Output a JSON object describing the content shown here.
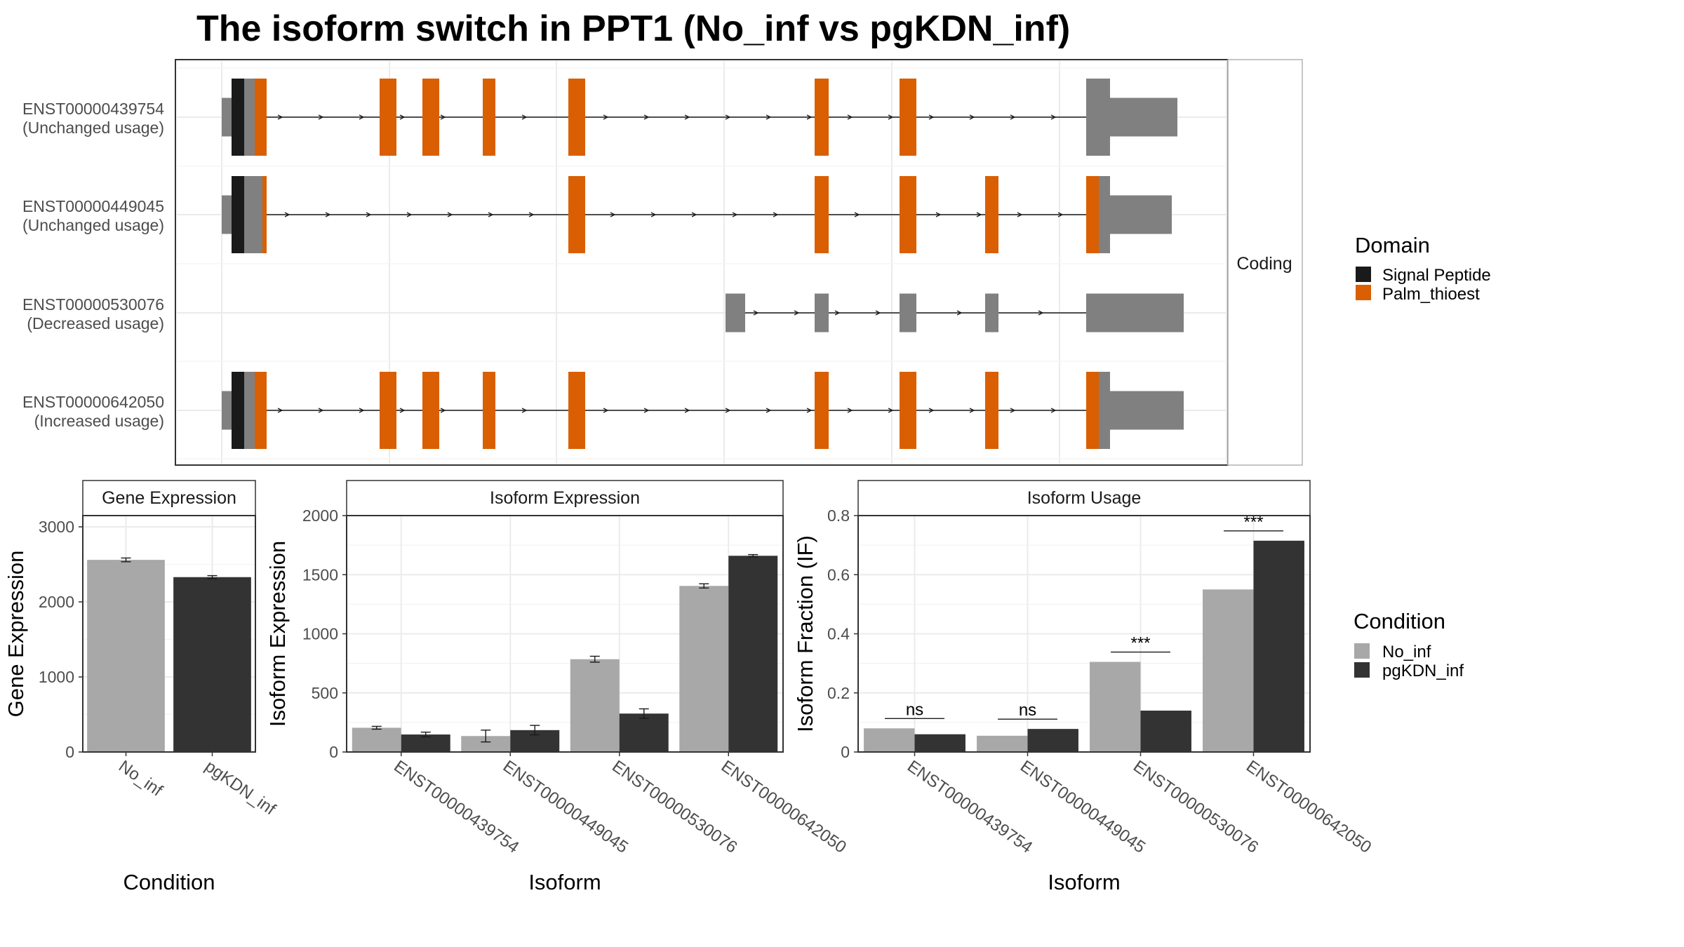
{
  "title": "The isoform switch in PPT1 (No_inf vs pgKDN_inf)",
  "colors": {
    "no_inf": "#a8a8a8",
    "pgkdn_inf": "#333333",
    "signal_peptide": "#1a1a1a",
    "palm_thioest": "#d95f02",
    "noncoding_exon": "#808080",
    "grid": "#ebebeb",
    "panel_border": "#333333"
  },
  "legends": {
    "domain": {
      "title": "Domain",
      "items": [
        "Signal Peptide",
        "Palm_thioest"
      ]
    },
    "condition": {
      "title": "Condition",
      "items": [
        "No_inf",
        "pgKDN_inf"
      ]
    }
  },
  "chart_data": [
    {
      "type": "gene-structure",
      "strip_label": "Coding",
      "isoforms": [
        {
          "id": "ENST00000439754",
          "usage": "(Unchanged usage)"
        },
        {
          "id": "ENST00000449045",
          "usage": "(Unchanged usage)"
        },
        {
          "id": "ENST00000530076",
          "usage": "(Decreased usage)"
        },
        {
          "id": "ENST00000642050",
          "usage": "(Increased usage)"
        }
      ]
    },
    {
      "type": "bar",
      "strip_title": "Gene Expression",
      "xlabel": "Condition",
      "ylabel": "Gene Expression",
      "categories": [
        "No_inf",
        "pgKDN_inf"
      ],
      "values": [
        2560,
        2330
      ],
      "errors": [
        25,
        20
      ],
      "ylim": [
        0,
        3150
      ],
      "yticks": [
        0,
        1000,
        2000,
        3000
      ]
    },
    {
      "type": "bar",
      "strip_title": "Isoform Expression",
      "xlabel": "Isoform",
      "ylabel": "Isoform Expression",
      "categories": [
        "ENST00000439754",
        "ENST00000449045",
        "ENST00000530076",
        "ENST00000642050"
      ],
      "series": [
        {
          "name": "No_inf",
          "values": [
            205,
            135,
            785,
            1405
          ],
          "errors": [
            12,
            50,
            25,
            18
          ]
        },
        {
          "name": "pgKDN_inf",
          "values": [
            148,
            185,
            325,
            1660
          ],
          "errors": [
            20,
            40,
            40,
            10
          ]
        }
      ],
      "ylim": [
        0,
        2000
      ],
      "yticks": [
        0,
        500,
        1000,
        1500,
        2000
      ]
    },
    {
      "type": "bar",
      "strip_title": "Isoform Usage",
      "xlabel": "Isoform",
      "ylabel": "Isoform Fraction (IF)",
      "categories": [
        "ENST00000439754",
        "ENST00000449045",
        "ENST00000530076",
        "ENST00000642050"
      ],
      "series": [
        {
          "name": "No_inf",
          "values": [
            0.08,
            0.055,
            0.305,
            0.55
          ]
        },
        {
          "name": "pgKDN_inf",
          "values": [
            0.06,
            0.078,
            0.14,
            0.715
          ]
        }
      ],
      "significance": [
        "ns",
        "ns",
        "***",
        "***"
      ],
      "ylim": [
        0,
        0.8
      ],
      "yticks": [
        0.0,
        0.2,
        0.4,
        0.6,
        0.8
      ]
    }
  ]
}
